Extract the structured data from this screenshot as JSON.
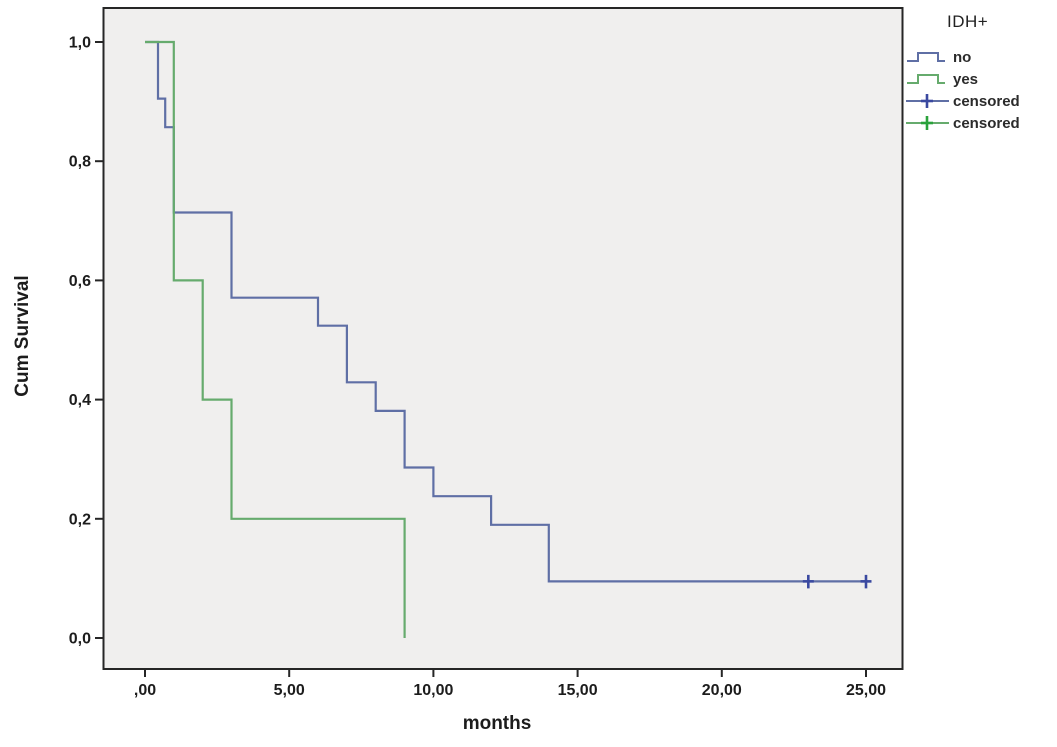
{
  "figure": {
    "ylabel": "Cum Survival",
    "xlabel": "months",
    "colors": {
      "background": "#ffffff",
      "plot_bg": "#f0efee",
      "border": "#262626",
      "text": "#1c1c1c",
      "blue_line": "#5f6fa5",
      "green_line": "#66ab6d",
      "blue_censor": "#3a49a0",
      "green_censor": "#2aa23c"
    },
    "legend": {
      "title": "IDH+",
      "entries": [
        {
          "label": "no",
          "sample": "step",
          "color": "#5f6fa5",
          "marker_color": "#5f6fa5"
        },
        {
          "label": "yes",
          "sample": "step",
          "color": "#66ab6d",
          "marker_color": "#66ab6d"
        },
        {
          "label": "censored",
          "sample": "plus",
          "color": "#5f6fa5",
          "marker_color": "#3a49a0"
        },
        {
          "label": "censored",
          "sample": "plus",
          "color": "#66ab6d",
          "marker_color": "#2aa23c"
        }
      ]
    }
  },
  "chart_data": {
    "type": "line",
    "subtype": "kaplan_meier_step",
    "title": "",
    "xlabel": "months",
    "ylabel": "Cum Survival",
    "xlim": [
      0,
      25
    ],
    "ylim": [
      0.0,
      1.0
    ],
    "grid": false,
    "legend_title": "IDH+",
    "legend_position": "outside top-right",
    "xticks": {
      "values": [
        0,
        5,
        10,
        15,
        20,
        25
      ],
      "labels": [
        ",00",
        "5,00",
        "10,00",
        "15,00",
        "20,00",
        "25,00"
      ]
    },
    "yticks": {
      "values": [
        0.0,
        0.2,
        0.4,
        0.6,
        0.8,
        1.0
      ],
      "labels": [
        "0,0",
        "0,2",
        "0,4",
        "0,6",
        "0,8",
        "1,0"
      ]
    },
    "series": [
      {
        "name": "no",
        "color": "#5f6fa5",
        "censor_color": "#3a49a0",
        "steps": [
          [
            0,
            1.0
          ],
          [
            0.45,
            0.905
          ],
          [
            0.7,
            0.857
          ],
          [
            1,
            0.714
          ],
          [
            3,
            0.571
          ],
          [
            6,
            0.524
          ],
          [
            7,
            0.429
          ],
          [
            8,
            0.381
          ],
          [
            9,
            0.286
          ],
          [
            10,
            0.238
          ],
          [
            12,
            0.19
          ],
          [
            14,
            0.095
          ],
          [
            25,
            0.095
          ]
        ],
        "censored": [
          [
            23,
            0.095
          ],
          [
            25,
            0.095
          ]
        ]
      },
      {
        "name": "yes",
        "color": "#66ab6d",
        "censor_color": "#2aa23c",
        "steps": [
          [
            0,
            1.0
          ],
          [
            1,
            0.6
          ],
          [
            2,
            0.4
          ],
          [
            3,
            0.2
          ],
          [
            9,
            0.0
          ]
        ],
        "censored": []
      }
    ]
  }
}
